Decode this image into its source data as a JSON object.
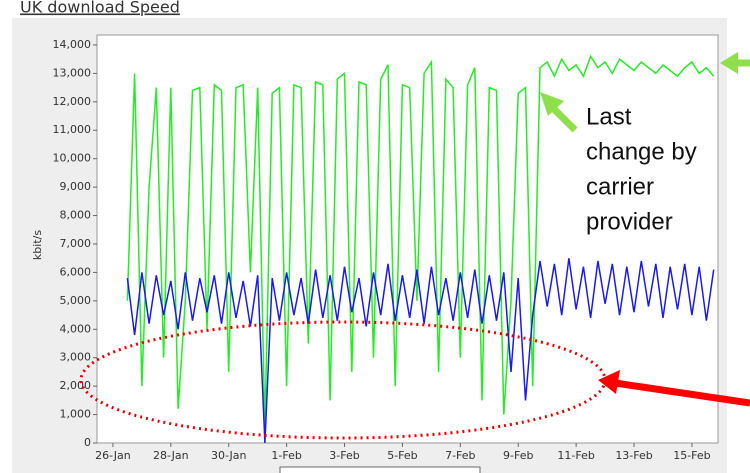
{
  "header": {
    "title": "UK download Speed"
  },
  "chart_data": {
    "type": "line",
    "ylabel": "kbit/s",
    "annotation": [
      "Last",
      "change by",
      "carrier",
      "provider"
    ],
    "x": [
      0.5,
      0.75,
      1,
      1.25,
      1.5,
      1.75,
      2,
      2.25,
      2.5,
      2.75,
      3,
      3.25,
      3.5,
      3.75,
      4,
      4.25,
      4.5,
      4.75,
      5,
      5.25,
      5.5,
      5.75,
      6,
      6.25,
      6.5,
      6.75,
      7,
      7.25,
      7.5,
      7.75,
      8,
      8.25,
      8.5,
      8.75,
      9,
      9.25,
      9.5,
      9.75,
      10,
      10.25,
      10.5,
      10.75,
      11,
      11.25,
      11.5,
      11.75,
      12,
      12.25,
      12.5,
      12.75,
      13,
      13.25,
      13.5,
      13.75,
      14,
      14.25,
      14.5,
      14.75,
      15,
      15.25,
      15.5,
      15.75,
      16,
      16.25,
      16.5,
      16.75,
      17,
      17.25,
      17.5,
      17.75,
      18,
      18.25,
      18.5,
      18.75,
      19,
      19.25,
      19.5,
      19.75,
      20,
      20.25,
      20.5,
      20.75
    ],
    "series": [
      {
        "name": "green",
        "color": "#22ee22",
        "values": [
          5000,
          13000,
          2000,
          9000,
          12500,
          3000,
          12500,
          1200,
          5000,
          12400,
          12500,
          4000,
          12600,
          12400,
          2500,
          12500,
          12600,
          6000,
          12500,
          500,
          12300,
          12500,
          2000,
          12600,
          12500,
          3500,
          12700,
          12600,
          1500,
          12800,
          13000,
          2500,
          12700,
          12600,
          3000,
          12800,
          13300,
          2000,
          12600,
          12500,
          5000,
          13000,
          13400,
          2500,
          12800,
          12500,
          3000,
          12600,
          13200,
          1500,
          12500,
          12400,
          1000,
          5000,
          12300,
          12500,
          2000,
          13200,
          13400,
          12900,
          13500,
          13100,
          13300,
          12900,
          13600,
          13200,
          13400,
          13000,
          13500,
          13300,
          13100,
          13400,
          13200,
          13000,
          13300,
          13100,
          12900,
          13200,
          13400,
          13000,
          13200,
          12900
        ]
      },
      {
        "name": "blue",
        "color": "#1a1aee",
        "values": [
          5800,
          3800,
          6000,
          4200,
          5900,
          4500,
          5700,
          4000,
          6000,
          4300,
          5800,
          4600,
          5900,
          4200,
          6000,
          4400,
          5700,
          4100,
          5900,
          0,
          5800,
          4300,
          6000,
          4500,
          5800,
          4200,
          6100,
          4400,
          5900,
          4300,
          6200,
          4600,
          5800,
          4100,
          6000,
          4500,
          6300,
          4300,
          5900,
          4400,
          6100,
          4200,
          6200,
          4500,
          5800,
          4300,
          6000,
          4400,
          6100,
          4200,
          5900,
          4300,
          6000,
          2500,
          5800,
          1500,
          4500,
          6400,
          4800,
          6300,
          4500,
          6500,
          4700,
          6200,
          4400,
          6400,
          4900,
          6300,
          4500,
          6200,
          4600,
          6400,
          4800,
          6300,
          4400,
          6200,
          4700,
          6300,
          4500,
          6200,
          4300,
          6100
        ]
      }
    ],
    "xlim": [
      -0.55,
      20.9
    ],
    "ylim": [
      0,
      14350
    ],
    "xticks": [
      {
        "value": 0,
        "label": "26-Jan"
      },
      {
        "value": 2,
        "label": "28-Jan"
      },
      {
        "value": 4,
        "label": "30-Jan"
      },
      {
        "value": 6,
        "label": "1-Feb"
      },
      {
        "value": 8,
        "label": "3-Feb"
      },
      {
        "value": 10,
        "label": "5-Feb"
      },
      {
        "value": 12,
        "label": "7-Feb"
      },
      {
        "value": 14,
        "label": "9-Feb"
      },
      {
        "value": 16,
        "label": "11-Feb"
      },
      {
        "value": 18,
        "label": "13-Feb"
      },
      {
        "value": 20,
        "label": "15-Feb"
      }
    ],
    "yticks": [
      0,
      {
        "value": 1000,
        "label": "1,000"
      },
      {
        "value": 2000,
        "label": "2,000"
      },
      {
        "value": 3000,
        "label": "3,000"
      },
      {
        "value": 4000,
        "label": "4,000"
      },
      {
        "value": 5000,
        "label": "5,000"
      },
      {
        "value": 6000,
        "label": "6,000"
      },
      {
        "value": 7000,
        "label": "7,000"
      },
      {
        "value": 8000,
        "label": "8,000"
      },
      {
        "value": 9000,
        "label": "9,000"
      },
      {
        "value": 10000,
        "label": "10,000"
      },
      {
        "value": 11000,
        "label": "11,000"
      },
      {
        "value": 12000,
        "label": "12,000"
      },
      {
        "value": 13000,
        "label": "13,000"
      },
      {
        "value": 14000,
        "label": "14,000"
      }
    ]
  }
}
